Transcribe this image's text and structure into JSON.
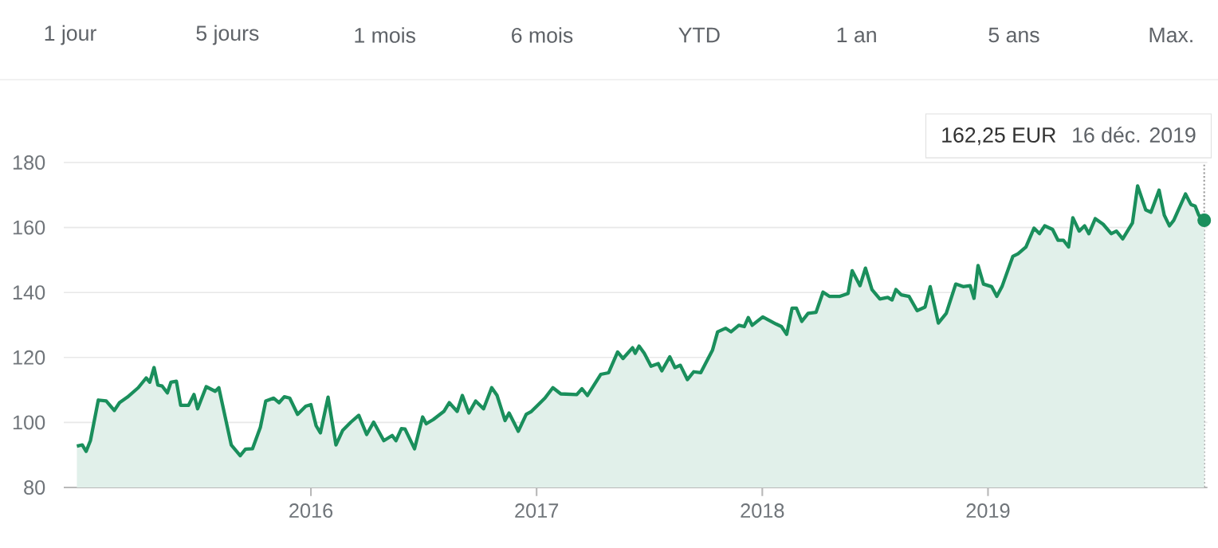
{
  "chart_data": {
    "type": "area",
    "x": [
      2014.963,
      2014.987,
      2015.004,
      2015.023,
      2015.058,
      2015.093,
      2015.129,
      2015.152,
      2015.187,
      2015.235,
      2015.27,
      2015.286,
      2015.305,
      2015.322,
      2015.341,
      2015.364,
      2015.38,
      2015.404,
      2015.423,
      2015.458,
      2015.482,
      2015.498,
      2015.536,
      2015.576,
      2015.592,
      2015.647,
      2015.687,
      2015.71,
      2015.741,
      2015.776,
      2015.8,
      2015.835,
      2015.859,
      2015.882,
      2015.906,
      2015.941,
      2015.977,
      2016.0,
      2016.023,
      2016.042,
      2016.076,
      2016.111,
      2016.141,
      2016.177,
      2016.212,
      2016.247,
      2016.278,
      2016.323,
      2016.36,
      2016.377,
      2016.401,
      2016.417,
      2016.459,
      2016.495,
      2016.511,
      2016.542,
      2016.589,
      2016.613,
      2016.648,
      2016.671,
      2016.7,
      2016.73,
      2016.765,
      2016.801,
      2016.825,
      2016.86,
      2016.878,
      2016.919,
      2016.954,
      2016.977,
      2017.037,
      2017.072,
      2017.107,
      2017.178,
      2017.201,
      2017.225,
      2017.284,
      2017.319,
      2017.359,
      2017.383,
      2017.425,
      2017.437,
      2017.454,
      2017.477,
      2017.507,
      2017.539,
      2017.555,
      2017.59,
      2017.613,
      2017.637,
      2017.668,
      2017.696,
      2017.727,
      2017.779,
      2017.802,
      2017.837,
      2017.861,
      2017.896,
      2017.92,
      2017.938,
      2017.955,
      2018.002,
      2018.061,
      2018.085,
      2018.108,
      2018.132,
      2018.151,
      2018.175,
      2018.203,
      2018.238,
      2018.269,
      2018.297,
      2018.344,
      2018.38,
      2018.398,
      2018.433,
      2018.457,
      2018.486,
      2018.521,
      2018.556,
      2018.575,
      2018.592,
      2018.615,
      2018.65,
      2018.686,
      2018.721,
      2018.744,
      2018.78,
      2018.815,
      2018.857,
      2018.89,
      2018.921,
      2018.938,
      2018.956,
      2018.98,
      2019.016,
      2019.039,
      2019.062,
      2019.11,
      2019.133,
      2019.168,
      2019.204,
      2019.228,
      2019.251,
      2019.286,
      2019.31,
      2019.334,
      2019.357,
      2019.376,
      2019.404,
      2019.428,
      2019.447,
      2019.475,
      2019.51,
      2019.546,
      2019.569,
      2019.597,
      2019.64,
      2019.663,
      2019.699,
      2019.722,
      2019.758,
      2019.781,
      2019.804,
      2019.823,
      2019.875,
      2019.899,
      2019.918,
      2019.934,
      2019.958
    ],
    "series": [
      {
        "color": "#1a8f5c",
        "values": [
          92.7,
          93.1,
          91.1,
          94.4,
          106.9,
          106.6,
          103.7,
          106.1,
          107.8,
          110.7,
          113.7,
          112.4,
          116.9,
          111.5,
          111.2,
          109.1,
          112.4,
          112.7,
          105.3,
          105.3,
          108.6,
          104.2,
          111.0,
          109.6,
          110.7,
          93.1,
          89.8,
          91.8,
          91.9,
          98.5,
          106.6,
          107.5,
          106.1,
          107.9,
          107.5,
          102.5,
          105.0,
          105.5,
          99.0,
          96.8,
          107.8,
          93.1,
          97.6,
          100.1,
          102.2,
          96.3,
          100.1,
          94.4,
          96.0,
          94.4,
          98.1,
          98.0,
          91.9,
          101.7,
          99.6,
          100.9,
          103.4,
          106.1,
          103.4,
          108.3,
          102.9,
          106.6,
          104.2,
          110.7,
          108.3,
          100.6,
          102.9,
          97.3,
          102.5,
          103.4,
          107.5,
          110.7,
          108.8,
          108.6,
          110.4,
          108.3,
          114.8,
          115.3,
          121.7,
          119.7,
          123.0,
          121.3,
          123.5,
          121.3,
          117.3,
          118.1,
          115.9,
          120.2,
          116.9,
          117.6,
          113.2,
          115.6,
          115.3,
          122.2,
          127.9,
          129.0,
          127.9,
          129.9,
          129.5,
          132.3,
          129.9,
          132.5,
          130.3,
          129.5,
          127.1,
          135.2,
          135.2,
          131.1,
          133.6,
          133.9,
          140.1,
          138.8,
          138.8,
          139.7,
          146.7,
          142.1,
          147.5,
          140.9,
          138.0,
          138.5,
          137.7,
          140.9,
          139.3,
          138.8,
          134.4,
          135.5,
          141.8,
          130.6,
          133.6,
          142.6,
          141.8,
          142.1,
          138.2,
          148.3,
          142.6,
          141.8,
          138.8,
          141.8,
          151.1,
          151.9,
          154.0,
          159.8,
          158.1,
          160.5,
          159.4,
          156.1,
          156.1,
          154.0,
          163.0,
          158.9,
          160.5,
          158.1,
          162.7,
          161.0,
          158.1,
          158.9,
          156.5,
          161.4,
          172.8,
          165.4,
          164.7,
          171.5,
          163.8,
          160.5,
          162.2,
          170.3,
          167.1,
          166.6,
          163.8,
          162.25
        ]
      },
      {
        "type": "scatter",
        "color": "#1a8f5c",
        "marker": "circle",
        "x": [
          2019.958
        ],
        "values": [
          162.25
        ]
      }
    ],
    "xlim": [
      2014.905,
      2019.972
    ],
    "xticks": [
      2016,
      2017,
      2018,
      2019
    ],
    "ylim": [
      80,
      180
    ],
    "yticks": [
      80,
      100,
      120,
      140,
      160,
      180
    ],
    "grid": "y",
    "ref_lines": [
      {
        "axis": "x",
        "value": 2019.958,
        "line_style": "dotted",
        "color": "#9e9e9e"
      }
    ],
    "title": "162,25 EUR",
    "subtitle": "16 déc. 2019",
    "annotations": [
      "1 jour",
      "5 jours",
      "1 mois",
      "6 mois",
      "YTD",
      "1 an",
      "5 ans",
      "Max."
    ]
  }
}
